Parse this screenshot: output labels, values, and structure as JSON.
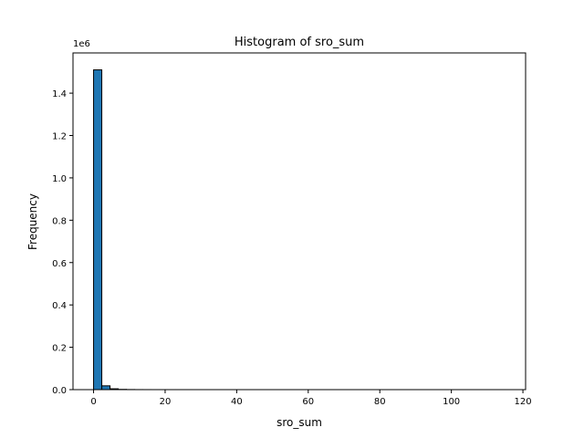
{
  "chart_data": {
    "type": "bar",
    "title": "Histogram of sro_sum",
    "xlabel": "sro_sum",
    "ylabel": "Frequency",
    "y_offset_label": "1e6",
    "xlim": [
      -5.75,
      120.75
    ],
    "ylim": [
      0,
      1.59
    ],
    "x_ticks": [
      0,
      20,
      40,
      60,
      80,
      100,
      120
    ],
    "y_ticks": [
      0.0,
      0.2,
      0.4,
      0.6,
      0.8,
      1.0,
      1.2,
      1.4
    ],
    "x_tick_labels": [
      "0",
      "20",
      "40",
      "60",
      "80",
      "100",
      "120"
    ],
    "y_tick_labels": [
      "0.0",
      "0.2",
      "0.4",
      "0.6",
      "0.8",
      "1.0",
      "1.2",
      "1.4"
    ],
    "bin_start": 0,
    "bin_width": 2.3,
    "bins": 50,
    "values": [
      1.51,
      0.018,
      0.004,
      0.0012,
      0.0005,
      0.0002,
      0.0001,
      5e-05,
      3e-05,
      2e-05,
      1e-05,
      1e-05,
      5e-06,
      5e-06,
      3e-06,
      3e-06,
      2e-06,
      2e-06,
      1e-06,
      1e-06,
      1e-06,
      1e-06,
      1e-06,
      5e-07,
      5e-07,
      5e-07,
      3e-07,
      3e-07,
      3e-07,
      2e-07,
      2e-07,
      2e-07,
      1e-07,
      1e-07,
      1e-07,
      1e-07,
      1e-07,
      1e-07,
      1e-07,
      1e-07,
      1e-07,
      1e-07,
      1e-07,
      1e-07,
      1e-07,
      1e-07,
      1e-07,
      1e-07,
      1e-07,
      1e-07
    ],
    "bar_color": "#1f77b4",
    "edge_color": "#000000",
    "grid": false,
    "legend": "none"
  }
}
